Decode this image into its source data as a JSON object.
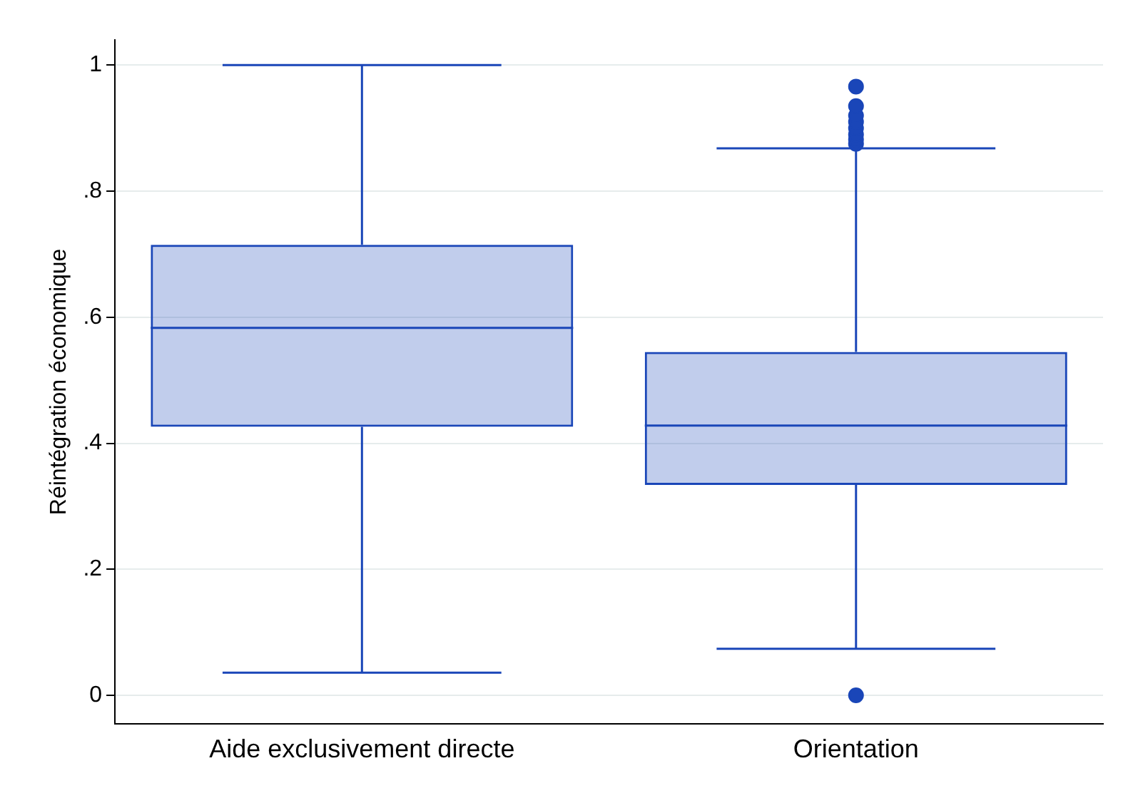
{
  "chart_data": {
    "type": "box",
    "ylabel": "Réintégration économique",
    "categories": [
      "Aide exclusivement directe",
      "Orientation"
    ],
    "series": [
      {
        "color": "#1a46b8",
        "boxes": [
          {
            "low": 0.036,
            "q1": 0.426,
            "median": 0.583,
            "q3": 0.715,
            "high": 1.0
          },
          {
            "low": 0.074,
            "q1": 0.334,
            "median": 0.428,
            "q3": 0.545,
            "high": 0.868,
            "outliers": [
              0,
              0.875,
              0.882,
              0.89,
              0.9,
              0.91,
              0.92,
              0.935,
              0.966
            ]
          }
        ]
      }
    ],
    "ylim": [
      -0.045,
      1.04
    ],
    "yticks": [
      0,
      {
        "value": 0.2,
        "label": ".2"
      },
      {
        "value": 0.4,
        "label": ".4"
      },
      {
        "value": 0.6,
        "label": ".6"
      },
      {
        "value": 0.8,
        "label": ".8"
      },
      1
    ],
    "grid": "y",
    "legend": false
  }
}
